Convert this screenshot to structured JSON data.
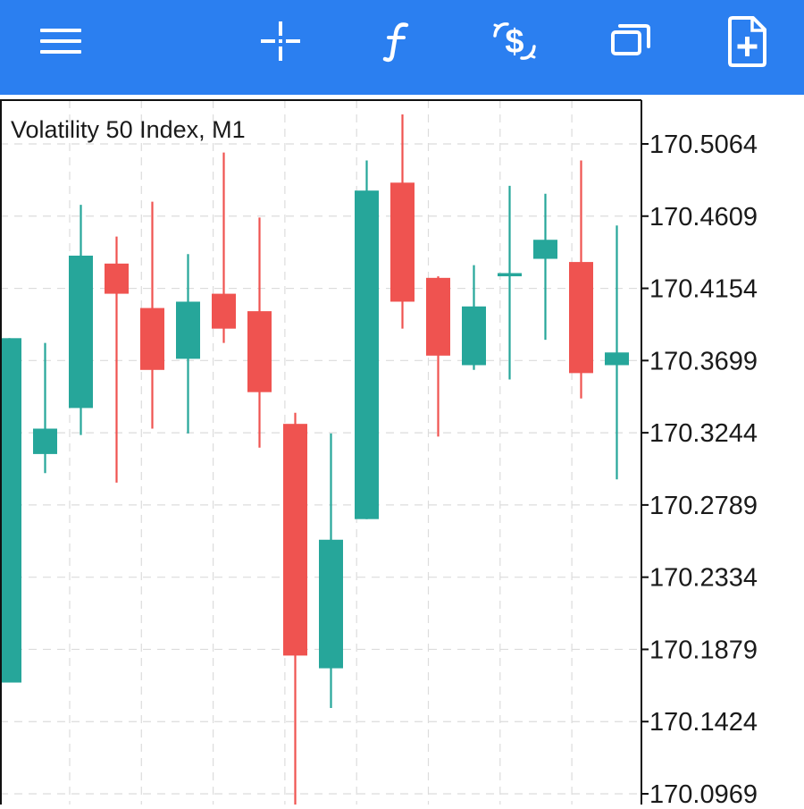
{
  "toolbar": {
    "buttons": [
      {
        "name": "menu-icon",
        "label": "Menu"
      },
      {
        "name": "crosshair-icon",
        "label": "Crosshair"
      },
      {
        "name": "indicators-icon",
        "label": "Indicators"
      },
      {
        "name": "trade-icon",
        "label": "New order"
      },
      {
        "name": "windows-icon",
        "label": "Windows"
      },
      {
        "name": "new-document-icon",
        "label": "Add"
      }
    ],
    "background": "#2b7ff0",
    "icon_color": "#ffffff"
  },
  "chart": {
    "title": "Volatility 50 Index, M1",
    "up_color": "#26a69a",
    "down_color": "#ef5350",
    "grid": true
  },
  "chart_data": {
    "type": "candlestick",
    "title": "Volatility 50 Index, M1",
    "symbol": "Volatility 50 Index",
    "timeframe": "M1",
    "price_axis": {
      "ticks": [
        "170.5064",
        "170.4609",
        "170.4154",
        "170.3699",
        "170.3244",
        "170.2789",
        "170.2334",
        "170.1879",
        "170.1424",
        "170.0969"
      ],
      "range": [
        170.09,
        170.53
      ]
    },
    "candles": [
      {
        "open": 170.167,
        "high": 170.384,
        "low": 170.167,
        "close": 170.384
      },
      {
        "open": 170.311,
        "high": 170.381,
        "low": 170.299,
        "close": 170.327
      },
      {
        "open": 170.34,
        "high": 170.468,
        "low": 170.323,
        "close": 170.436
      },
      {
        "open": 170.431,
        "high": 170.448,
        "low": 170.293,
        "close": 170.412
      },
      {
        "open": 170.403,
        "high": 170.47,
        "low": 170.327,
        "close": 170.364
      },
      {
        "open": 170.371,
        "high": 170.437,
        "low": 170.324,
        "close": 170.407
      },
      {
        "open": 170.412,
        "high": 170.501,
        "low": 170.381,
        "close": 170.39
      },
      {
        "open": 170.401,
        "high": 170.46,
        "low": 170.315,
        "close": 170.35
      },
      {
        "open": 170.33,
        "high": 170.337,
        "low": 170.088,
        "close": 170.184
      },
      {
        "open": 170.176,
        "high": 170.324,
        "low": 170.151,
        "close": 170.257
      },
      {
        "open": 170.27,
        "high": 170.496,
        "low": 170.27,
        "close": 170.477
      },
      {
        "open": 170.482,
        "high": 170.525,
        "low": 170.39,
        "close": 170.407
      },
      {
        "open": 170.422,
        "high": 170.423,
        "low": 170.322,
        "close": 170.373
      },
      {
        "open": 170.367,
        "high": 170.43,
        "low": 170.364,
        "close": 170.404
      },
      {
        "open": 170.423,
        "high": 170.48,
        "low": 170.358,
        "close": 170.425
      },
      {
        "open": 170.434,
        "high": 170.475,
        "low": 170.383,
        "close": 170.446
      },
      {
        "open": 170.432,
        "high": 170.496,
        "low": 170.346,
        "close": 170.362
      },
      {
        "open": 170.367,
        "high": 170.455,
        "low": 170.295,
        "close": 170.375
      }
    ]
  }
}
